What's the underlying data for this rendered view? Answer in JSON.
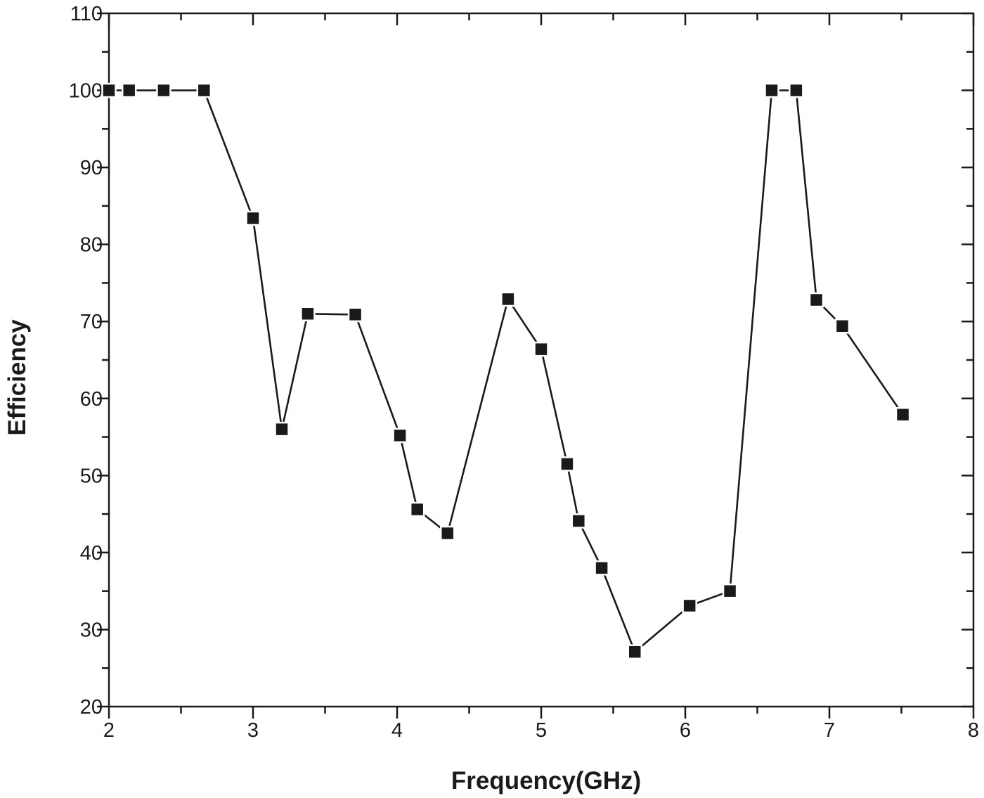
{
  "chart_data": {
    "type": "line",
    "title": "",
    "xlabel": "Frequency(GHz)",
    "ylabel": "Efficiency",
    "xlim": [
      2,
      8
    ],
    "ylim": [
      20,
      110
    ],
    "x_ticks": [
      2,
      3,
      4,
      5,
      6,
      7,
      8
    ],
    "y_ticks": [
      20,
      30,
      40,
      50,
      60,
      70,
      80,
      90,
      100,
      110
    ],
    "x_minor_step": 0.5,
    "y_minor_step": 5,
    "grid": false,
    "legend": null,
    "marker": "square",
    "series": [
      {
        "name": "Efficiency",
        "color": "#1a1a1a",
        "x": [
          2.0,
          2.14,
          2.38,
          2.66,
          3.0,
          3.2,
          3.38,
          3.71,
          4.02,
          4.14,
          4.35,
          4.77,
          5.0,
          5.18,
          5.26,
          5.42,
          5.65,
          6.03,
          6.31,
          6.6,
          6.77,
          6.91,
          7.09,
          7.51
        ],
        "y": [
          100,
          100,
          100,
          100,
          83.4,
          56.0,
          71.0,
          70.9,
          55.2,
          45.6,
          42.5,
          72.9,
          66.4,
          51.5,
          44.1,
          38.0,
          27.1,
          33.1,
          35.0,
          100,
          100,
          72.8,
          69.4,
          57.9
        ]
      }
    ]
  },
  "colors": {
    "axis": "#1a1a1a",
    "marker": "#1a1a1a",
    "background": "#ffffff"
  }
}
